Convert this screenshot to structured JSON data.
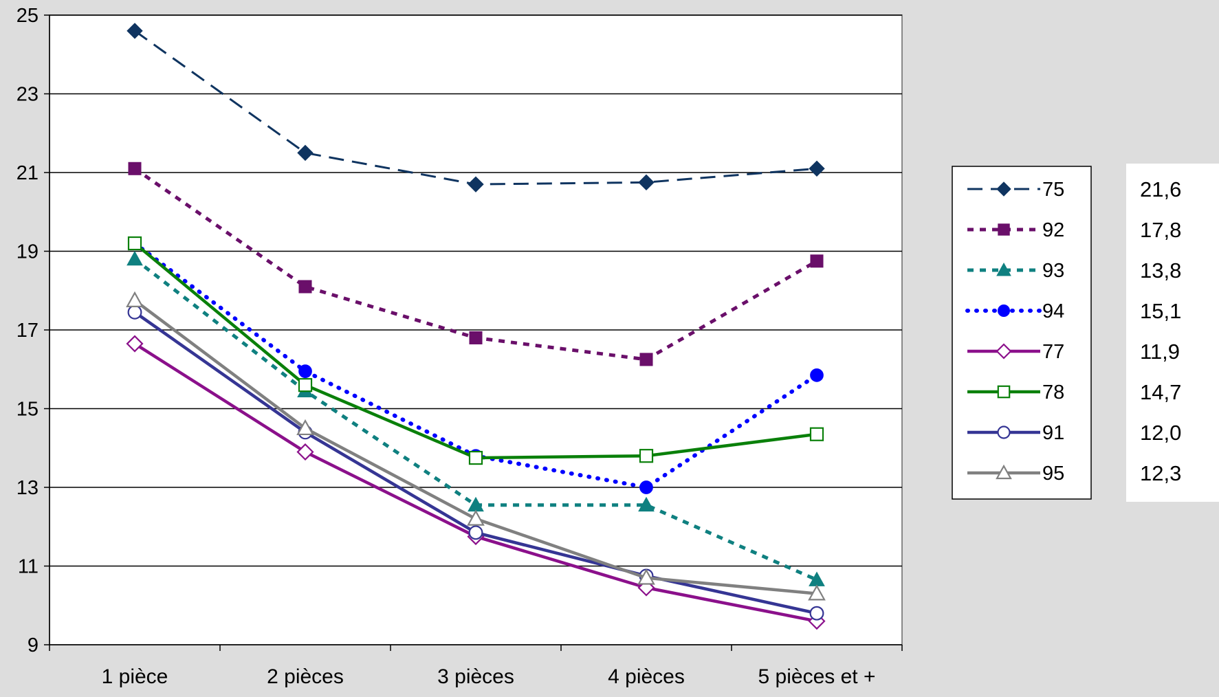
{
  "chart_data": {
    "type": "line",
    "title": "",
    "xlabel": "",
    "ylabel": "",
    "categories": [
      "1 pièce",
      "2 pièces",
      "3 pièces",
      "4 pièces",
      "5 pièces et +"
    ],
    "ylim": [
      9,
      25
    ],
    "yticks": [
      9,
      11,
      13,
      15,
      17,
      19,
      21,
      23,
      25
    ],
    "grid": true,
    "legend_position": "right",
    "series": [
      {
        "name": "75",
        "values": [
          24.6,
          21.5,
          20.7,
          20.75,
          21.1
        ],
        "color": "#0f3460",
        "style": "dashed",
        "marker": "diamond",
        "filled": true,
        "side_value": "21,6"
      },
      {
        "name": "92",
        "values": [
          21.1,
          18.1,
          16.8,
          16.25,
          18.75
        ],
        "color": "#6a0f6a",
        "style": "dotted-square",
        "marker": "square",
        "filled": true,
        "side_value": "17,8"
      },
      {
        "name": "93",
        "values": [
          18.8,
          15.45,
          12.55,
          12.55,
          10.65
        ],
        "color": "#0f8080",
        "style": "dotted-square",
        "marker": "triangle",
        "filled": true,
        "side_value": "13,8"
      },
      {
        "name": "94",
        "values": [
          19.2,
          15.95,
          13.8,
          13.0,
          15.85
        ],
        "color": "#0000ff",
        "style": "dotted-round",
        "marker": "circle",
        "filled": true,
        "side_value": "15,1"
      },
      {
        "name": "77",
        "values": [
          16.65,
          13.9,
          11.75,
          10.45,
          9.6
        ],
        "color": "#8b108b",
        "style": "solid",
        "marker": "diamond",
        "filled": false,
        "side_value": "11,9"
      },
      {
        "name": "78",
        "values": [
          19.2,
          15.6,
          13.75,
          13.8,
          14.35
        ],
        "color": "#0a800a",
        "style": "solid",
        "marker": "square",
        "filled": false,
        "side_value": "14,7"
      },
      {
        "name": "91",
        "values": [
          17.45,
          14.4,
          11.85,
          10.75,
          9.8
        ],
        "color": "#353594",
        "style": "solid",
        "marker": "circle",
        "filled": false,
        "side_value": "12,0"
      },
      {
        "name": "95",
        "values": [
          17.75,
          14.5,
          12.2,
          10.7,
          10.3
        ],
        "color": "#808080",
        "style": "solid",
        "marker": "triangle",
        "filled": false,
        "side_value": "12,3"
      }
    ]
  }
}
